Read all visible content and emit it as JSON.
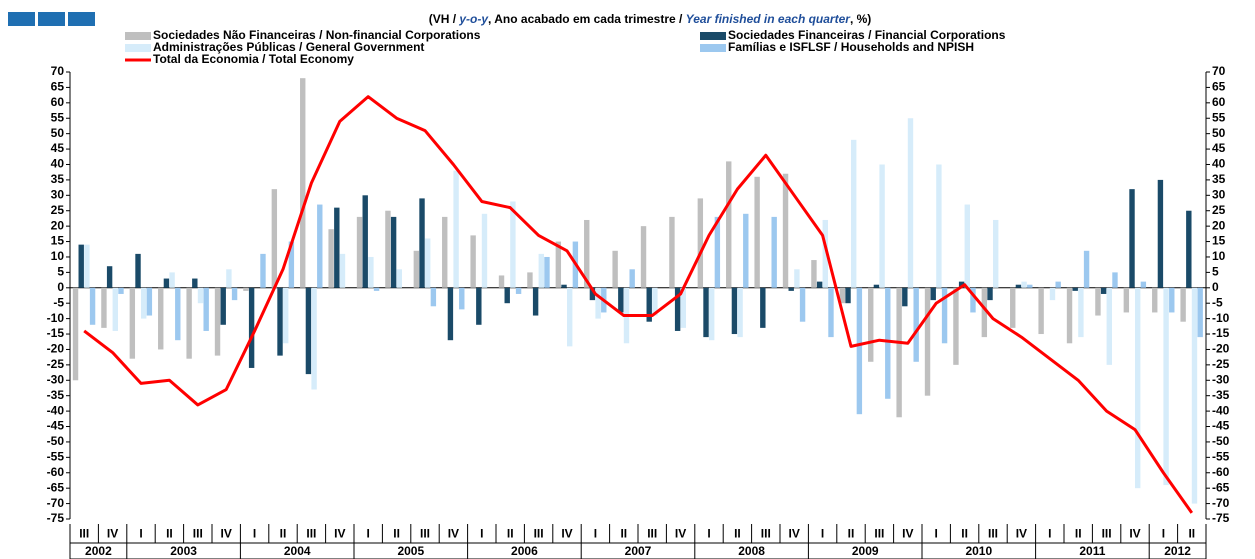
{
  "chart_data": {
    "type": "bar",
    "title": [
      "(VH / ",
      "y-o-y",
      ", Ano acabado em cada trimestre / ",
      "Year finished in each quarter",
      ", %)"
    ],
    "categories": [
      "III",
      "IV",
      "I",
      "II",
      "III",
      "IV",
      "I",
      "II",
      "III",
      "IV",
      "I",
      "II",
      "III",
      "IV",
      "I",
      "II",
      "III",
      "IV",
      "I",
      "II",
      "III",
      "IV",
      "I",
      "II",
      "III",
      "IV",
      "I",
      "II",
      "III",
      "IV",
      "I",
      "II",
      "III",
      "IV",
      "I",
      "II",
      "III",
      "IV",
      "I",
      "II"
    ],
    "year_labels": [
      "2002",
      "2003",
      "2004",
      "2005",
      "2006",
      "2007",
      "2008",
      "2009",
      "2010",
      "2011",
      "2012"
    ],
    "series": [
      {
        "name": "Sociedades Não Financeiras / Non-financial Corporations",
        "type": "bar",
        "color": "#bfbfbf",
        "values": [
          -30,
          -13,
          -23,
          -20,
          -23,
          -22,
          -1,
          32,
          68,
          19,
          23,
          25,
          12,
          23,
          17,
          4,
          5,
          15,
          22,
          12,
          20,
          23,
          29,
          41,
          36,
          37,
          9,
          -5,
          -24,
          -42,
          -35,
          -25,
          -16,
          -13,
          -15,
          -18,
          -9,
          -8,
          -8,
          -11
        ]
      },
      {
        "name": "Sociedades Financeiras / Financial Corporations",
        "type": "bar",
        "color": "#1a4a68",
        "values": [
          14,
          7,
          11,
          3,
          3,
          -12,
          -26,
          -22,
          -28,
          26,
          30,
          23,
          29,
          -17,
          -12,
          -5,
          -9,
          1,
          -4,
          -8,
          -11,
          -14,
          -16,
          -15,
          -13,
          -1,
          2,
          -5,
          1,
          -6,
          -4,
          2,
          -4,
          1,
          0,
          -1,
          -2,
          32,
          35,
          25
        ]
      },
      {
        "name": "Administrações Públicas / General Government",
        "type": "bar",
        "color": "#d6ecfa",
        "values": [
          14,
          -14,
          -10,
          5,
          -5,
          6,
          0,
          -18,
          -33,
          11,
          10,
          6,
          16,
          38,
          24,
          28,
          11,
          -19,
          -10,
          -18,
          -9,
          -13,
          -17,
          -16,
          0,
          6,
          22,
          48,
          40,
          55,
          40,
          27,
          22,
          2,
          -4,
          -16,
          -25,
          -65,
          -64,
          -70
        ]
      },
      {
        "name": "Famílias e ISFLSF / Households and NPISH",
        "type": "bar",
        "color": "#9cc8ef",
        "values": [
          -12,
          -2,
          -9,
          -17,
          -14,
          -4,
          11,
          15,
          27,
          0,
          -1,
          0,
          -6,
          -7,
          0,
          -2,
          10,
          15,
          -8,
          6,
          0,
          0,
          23,
          24,
          23,
          -11,
          -16,
          -41,
          -36,
          -24,
          -18,
          -8,
          0,
          1,
          2,
          12,
          5,
          2,
          -8,
          -16
        ]
      },
      {
        "name": "Total da Economia / Total Economy",
        "type": "line",
        "color": "#ff0000",
        "values": [
          -14,
          -21,
          -31,
          -30,
          -38,
          -33,
          -14,
          6,
          34,
          54,
          62,
          55,
          51,
          40,
          28,
          26,
          17,
          12,
          -2,
          -9,
          -9,
          -2,
          17,
          32,
          43,
          30,
          17,
          -19,
          -17,
          -18,
          -5,
          1,
          -10,
          -16,
          -23,
          -30,
          -40,
          -46,
          -60,
          -73
        ]
      }
    ],
    "ylim": [
      -75,
      70
    ],
    "yticks": [
      -75,
      -70,
      -65,
      -60,
      -55,
      -50,
      -45,
      -40,
      -35,
      -30,
      -25,
      -20,
      -15,
      -10,
      -5,
      0,
      5,
      10,
      15,
      20,
      25,
      30,
      35,
      40,
      45,
      50,
      55,
      60,
      65,
      70
    ],
    "y2lim": [
      -75,
      70
    ],
    "y2ticks": [
      -75,
      -70,
      -65,
      -60,
      -55,
      -50,
      -45,
      -40,
      -35,
      -30,
      -25,
      -20,
      -15,
      -10,
      -5,
      0,
      5,
      10,
      15,
      20,
      25,
      30,
      35,
      40,
      45,
      50,
      55,
      60,
      65,
      70
    ],
    "grid": false
  }
}
